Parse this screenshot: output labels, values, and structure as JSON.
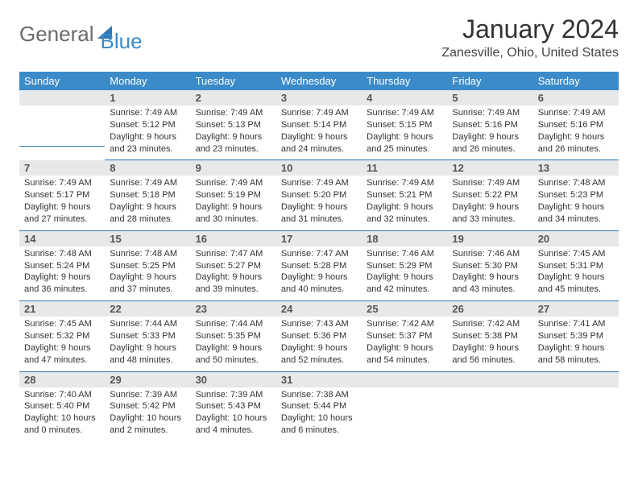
{
  "logo": {
    "text1": "General",
    "text2": "Blue"
  },
  "title": "January 2024",
  "location": "Zanesville, Ohio, United States",
  "colors": {
    "header_bg": "#3b8bc9",
    "header_text": "#ffffff",
    "daynum_bg": "#e7e8e9",
    "border": "#2f77b5",
    "body_text": "#333333",
    "logo_gray": "#6b6b6b",
    "logo_blue": "#3b8bc9"
  },
  "typography": {
    "title_fontsize": 32,
    "location_fontsize": 16,
    "header_fontsize": 13,
    "daynum_fontsize": 13,
    "details_fontsize": 11
  },
  "day_names": [
    "Sunday",
    "Monday",
    "Tuesday",
    "Wednesday",
    "Thursday",
    "Friday",
    "Saturday"
  ],
  "weeks": [
    [
      {
        "day": "",
        "sunrise": "",
        "sunset": "",
        "daylight": ""
      },
      {
        "day": "1",
        "sunrise": "Sunrise: 7:49 AM",
        "sunset": "Sunset: 5:12 PM",
        "daylight": "Daylight: 9 hours and 23 minutes."
      },
      {
        "day": "2",
        "sunrise": "Sunrise: 7:49 AM",
        "sunset": "Sunset: 5:13 PM",
        "daylight": "Daylight: 9 hours and 23 minutes."
      },
      {
        "day": "3",
        "sunrise": "Sunrise: 7:49 AM",
        "sunset": "Sunset: 5:14 PM",
        "daylight": "Daylight: 9 hours and 24 minutes."
      },
      {
        "day": "4",
        "sunrise": "Sunrise: 7:49 AM",
        "sunset": "Sunset: 5:15 PM",
        "daylight": "Daylight: 9 hours and 25 minutes."
      },
      {
        "day": "5",
        "sunrise": "Sunrise: 7:49 AM",
        "sunset": "Sunset: 5:16 PM",
        "daylight": "Daylight: 9 hours and 26 minutes."
      },
      {
        "day": "6",
        "sunrise": "Sunrise: 7:49 AM",
        "sunset": "Sunset: 5:16 PM",
        "daylight": "Daylight: 9 hours and 26 minutes."
      }
    ],
    [
      {
        "day": "7",
        "sunrise": "Sunrise: 7:49 AM",
        "sunset": "Sunset: 5:17 PM",
        "daylight": "Daylight: 9 hours and 27 minutes."
      },
      {
        "day": "8",
        "sunrise": "Sunrise: 7:49 AM",
        "sunset": "Sunset: 5:18 PM",
        "daylight": "Daylight: 9 hours and 28 minutes."
      },
      {
        "day": "9",
        "sunrise": "Sunrise: 7:49 AM",
        "sunset": "Sunset: 5:19 PM",
        "daylight": "Daylight: 9 hours and 30 minutes."
      },
      {
        "day": "10",
        "sunrise": "Sunrise: 7:49 AM",
        "sunset": "Sunset: 5:20 PM",
        "daylight": "Daylight: 9 hours and 31 minutes."
      },
      {
        "day": "11",
        "sunrise": "Sunrise: 7:49 AM",
        "sunset": "Sunset: 5:21 PM",
        "daylight": "Daylight: 9 hours and 32 minutes."
      },
      {
        "day": "12",
        "sunrise": "Sunrise: 7:49 AM",
        "sunset": "Sunset: 5:22 PM",
        "daylight": "Daylight: 9 hours and 33 minutes."
      },
      {
        "day": "13",
        "sunrise": "Sunrise: 7:48 AM",
        "sunset": "Sunset: 5:23 PM",
        "daylight": "Daylight: 9 hours and 34 minutes."
      }
    ],
    [
      {
        "day": "14",
        "sunrise": "Sunrise: 7:48 AM",
        "sunset": "Sunset: 5:24 PM",
        "daylight": "Daylight: 9 hours and 36 minutes."
      },
      {
        "day": "15",
        "sunrise": "Sunrise: 7:48 AM",
        "sunset": "Sunset: 5:25 PM",
        "daylight": "Daylight: 9 hours and 37 minutes."
      },
      {
        "day": "16",
        "sunrise": "Sunrise: 7:47 AM",
        "sunset": "Sunset: 5:27 PM",
        "daylight": "Daylight: 9 hours and 39 minutes."
      },
      {
        "day": "17",
        "sunrise": "Sunrise: 7:47 AM",
        "sunset": "Sunset: 5:28 PM",
        "daylight": "Daylight: 9 hours and 40 minutes."
      },
      {
        "day": "18",
        "sunrise": "Sunrise: 7:46 AM",
        "sunset": "Sunset: 5:29 PM",
        "daylight": "Daylight: 9 hours and 42 minutes."
      },
      {
        "day": "19",
        "sunrise": "Sunrise: 7:46 AM",
        "sunset": "Sunset: 5:30 PM",
        "daylight": "Daylight: 9 hours and 43 minutes."
      },
      {
        "day": "20",
        "sunrise": "Sunrise: 7:45 AM",
        "sunset": "Sunset: 5:31 PM",
        "daylight": "Daylight: 9 hours and 45 minutes."
      }
    ],
    [
      {
        "day": "21",
        "sunrise": "Sunrise: 7:45 AM",
        "sunset": "Sunset: 5:32 PM",
        "daylight": "Daylight: 9 hours and 47 minutes."
      },
      {
        "day": "22",
        "sunrise": "Sunrise: 7:44 AM",
        "sunset": "Sunset: 5:33 PM",
        "daylight": "Daylight: 9 hours and 48 minutes."
      },
      {
        "day": "23",
        "sunrise": "Sunrise: 7:44 AM",
        "sunset": "Sunset: 5:35 PM",
        "daylight": "Daylight: 9 hours and 50 minutes."
      },
      {
        "day": "24",
        "sunrise": "Sunrise: 7:43 AM",
        "sunset": "Sunset: 5:36 PM",
        "daylight": "Daylight: 9 hours and 52 minutes."
      },
      {
        "day": "25",
        "sunrise": "Sunrise: 7:42 AM",
        "sunset": "Sunset: 5:37 PM",
        "daylight": "Daylight: 9 hours and 54 minutes."
      },
      {
        "day": "26",
        "sunrise": "Sunrise: 7:42 AM",
        "sunset": "Sunset: 5:38 PM",
        "daylight": "Daylight: 9 hours and 56 minutes."
      },
      {
        "day": "27",
        "sunrise": "Sunrise: 7:41 AM",
        "sunset": "Sunset: 5:39 PM",
        "daylight": "Daylight: 9 hours and 58 minutes."
      }
    ],
    [
      {
        "day": "28",
        "sunrise": "Sunrise: 7:40 AM",
        "sunset": "Sunset: 5:40 PM",
        "daylight": "Daylight: 10 hours and 0 minutes."
      },
      {
        "day": "29",
        "sunrise": "Sunrise: 7:39 AM",
        "sunset": "Sunset: 5:42 PM",
        "daylight": "Daylight: 10 hours and 2 minutes."
      },
      {
        "day": "30",
        "sunrise": "Sunrise: 7:39 AM",
        "sunset": "Sunset: 5:43 PM",
        "daylight": "Daylight: 10 hours and 4 minutes."
      },
      {
        "day": "31",
        "sunrise": "Sunrise: 7:38 AM",
        "sunset": "Sunset: 5:44 PM",
        "daylight": "Daylight: 10 hours and 6 minutes."
      },
      {
        "day": "",
        "sunrise": "",
        "sunset": "",
        "daylight": ""
      },
      {
        "day": "",
        "sunrise": "",
        "sunset": "",
        "daylight": ""
      },
      {
        "day": "",
        "sunrise": "",
        "sunset": "",
        "daylight": ""
      }
    ]
  ]
}
